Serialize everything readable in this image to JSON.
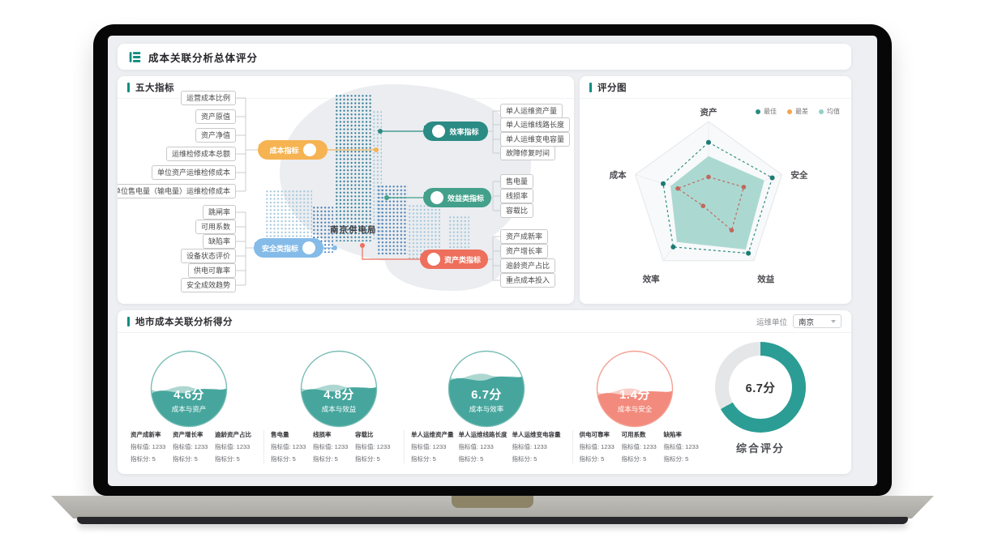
{
  "app": {
    "title": "成本关联分析总体评分",
    "logo_icon": "layers-logo-icon",
    "accent_color": "#128d82"
  },
  "colors": {
    "screen_bg": "#edeff2",
    "gauge_teal_main": "#46a69e",
    "gauge_teal_light": "#93cac3",
    "gauge_teal_ring": "#79bdb5",
    "gauge_red_main": "#f28b7d",
    "gauge_red_light": "#f8bcb3",
    "gauge_red_ring": "#f4a093",
    "donut_teal": "#2b9d94",
    "donut_gray": "#e5e6e8",
    "connector_gray": "#c9cdd2"
  },
  "indicators_panel": {
    "title": "五大指标",
    "center_label": "南京供电局",
    "groups": [
      {
        "name": "成本指标",
        "color": "#f6b352",
        "side": "left",
        "leaves": [
          "运营成本比例",
          "资产原值",
          "资产净值",
          "运维检修成本总额",
          "单位资产运维检修成本",
          "单位售电量（输电量）运维检修成本"
        ]
      },
      {
        "name": "安全类指标",
        "color": "#85bbe8",
        "side": "left",
        "leaves": [
          "跳闸率",
          "可用系数",
          "缺陷率",
          "设备状态评价",
          "供电可靠率",
          "安全成效趋势"
        ]
      },
      {
        "name": "效率指标",
        "color": "#2a8a84",
        "side": "right",
        "leaves": [
          "单人运维资产量",
          "单人运维线路长度",
          "单人运维变电容量",
          "故障修复时间"
        ]
      },
      {
        "name": "效益类指标",
        "color": "#43a08b",
        "side": "right",
        "leaves": [
          "售电量",
          "线损率",
          "容载比"
        ]
      },
      {
        "name": "资产类指标",
        "color": "#ee6f5c",
        "side": "right",
        "leaves": [
          "资产成新率",
          "资产增长率",
          "逾龄资产占比",
          "重点成本投入"
        ]
      }
    ]
  },
  "radar_panel": {
    "title": "评分图",
    "legend": [
      {
        "label": "最佳",
        "color": "#2a8a84"
      },
      {
        "label": "最差",
        "color": "#f2a64e"
      },
      {
        "label": "均值",
        "color": "#8fd0c8"
      }
    ]
  },
  "scores_panel": {
    "title": "地市成本关联分析得分",
    "unit_label": "运维单位",
    "unit_value": "南京",
    "gauges": [
      {
        "score": "4.6分",
        "label": "成本与资产",
        "theme": "teal",
        "fill": 0.52
      },
      {
        "score": "4.8分",
        "label": "成本与效益",
        "theme": "teal",
        "fill": 0.5
      },
      {
        "score": "6.7分",
        "label": "成本与效率",
        "theme": "teal",
        "fill": 0.36
      },
      {
        "score": "1.4分",
        "label": "成本与安全",
        "theme": "red",
        "fill": 0.55
      }
    ],
    "donut": {
      "score": "6.7分",
      "label": "综合评分",
      "percent": 67
    },
    "stat_groups": [
      {
        "stats": [
          {
            "name": "资产成新率",
            "metrics": [
              "指标值: 1233",
              "指标分: 5"
            ]
          },
          {
            "name": "资产增长率",
            "metrics": [
              "指标值: 1233",
              "指标分: 5"
            ]
          },
          {
            "name": "逾龄资产占比",
            "metrics": [
              "指标值: 1233",
              "指标分: 5"
            ]
          }
        ]
      },
      {
        "stats": [
          {
            "name": "售电量",
            "metrics": [
              "指标值: 1233",
              "指标分: 5"
            ]
          },
          {
            "name": "线损率",
            "metrics": [
              "指标值: 1233",
              "指标分: 5"
            ]
          },
          {
            "name": "容载比",
            "metrics": [
              "指标值: 1233",
              "指标分: 5"
            ]
          }
        ]
      },
      {
        "stats": [
          {
            "name": "单人运维资产量",
            "metrics": [
              "指标值: 1233",
              "指标分: 5"
            ]
          },
          {
            "name": "单人运维线路长度",
            "metrics": [
              "指标值: 1233",
              "指标分: 5"
            ]
          },
          {
            "name": "单人运维变电容量",
            "metrics": [
              "指标值: 1233",
              "指标分: 5"
            ]
          }
        ]
      },
      {
        "stats": [
          {
            "name": "供电可靠率",
            "metrics": [
              "指标值: 1233",
              "指标分: 5"
            ]
          },
          {
            "name": "可用系数",
            "metrics": [
              "指标值: 1233",
              "指标分: 5"
            ]
          },
          {
            "name": "缺陷率",
            "metrics": [
              "指标值: 1233",
              "指标分: 5"
            ]
          }
        ]
      }
    ]
  },
  "chart_data": [
    {
      "type": "radar",
      "title": "评分图",
      "categories": [
        "资产",
        "安全",
        "效益",
        "效率",
        "成本"
      ],
      "max": 10,
      "legend_position": "top-right",
      "grid": "single-outer-pentagon",
      "series": [
        {
          "name": "最佳",
          "values": [
            7.3,
            8.7,
            8.8,
            7.8,
            6.2
          ],
          "color": "#2f8f87",
          "dot_color": "#1d7a74",
          "style": "dashed-line"
        },
        {
          "name": "最差",
          "values": [
            2.8,
            4.8,
            5.1,
            1.2,
            4.2
          ],
          "color": "#c2675c",
          "dot_color": "#c2675c",
          "style": "dashed-line"
        },
        {
          "name": "均值",
          "values": [
            5.5,
            7.6,
            8.2,
            7.0,
            5.2
          ],
          "color": "#a7d7d0",
          "style": "filled-area"
        }
      ]
    },
    {
      "type": "gauge",
      "max": 10,
      "items": [
        {
          "label": "成本与资产",
          "value": 4.6
        },
        {
          "label": "成本与效益",
          "value": 4.8
        },
        {
          "label": "成本与效率",
          "value": 6.7
        },
        {
          "label": "成本与安全",
          "value": 1.4
        }
      ]
    },
    {
      "type": "donut",
      "label": "综合评分",
      "value": 6.7,
      "max": 10,
      "percent_filled": 67
    }
  ]
}
